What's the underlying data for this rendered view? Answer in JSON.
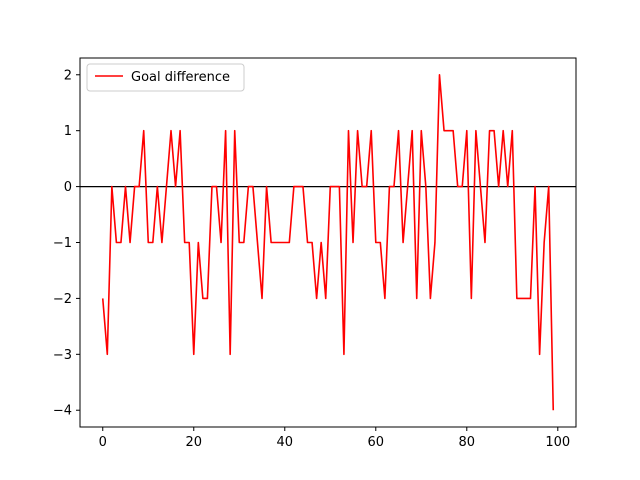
{
  "chart_data": {
    "type": "line",
    "title": "",
    "xlabel": "",
    "ylabel": "",
    "xlim": [
      -5,
      104
    ],
    "ylim": [
      -4.3,
      2.3
    ],
    "xticks": [
      0,
      20,
      40,
      60,
      80,
      100
    ],
    "yticks": [
      -4,
      -3,
      -2,
      -1,
      0,
      1,
      2
    ],
    "xtick_labels": [
      "0",
      "20",
      "40",
      "60",
      "80",
      "100"
    ],
    "ytick_labels": [
      "−4",
      "−3",
      "−2",
      "−1",
      "0",
      "1",
      "2"
    ],
    "grid": false,
    "legend_position": "top-left",
    "reference_line": {
      "y": 0,
      "color": "#000000"
    },
    "series": [
      {
        "name": "Goal difference",
        "color": "#ff0000",
        "x": [
          0,
          1,
          2,
          3,
          4,
          5,
          6,
          7,
          8,
          9,
          10,
          11,
          12,
          13,
          14,
          15,
          16,
          17,
          18,
          19,
          20,
          21,
          22,
          23,
          24,
          25,
          26,
          27,
          28,
          29,
          30,
          31,
          32,
          33,
          34,
          35,
          36,
          37,
          38,
          39,
          40,
          41,
          42,
          43,
          44,
          45,
          46,
          47,
          48,
          49,
          50,
          51,
          52,
          53,
          54,
          55,
          56,
          57,
          58,
          59,
          60,
          61,
          62,
          63,
          64,
          65,
          66,
          67,
          68,
          69,
          70,
          71,
          72,
          73,
          74,
          75,
          76,
          77,
          78,
          79,
          80,
          81,
          82,
          83,
          84,
          85,
          86,
          87,
          88,
          89,
          90,
          91,
          92,
          93,
          94,
          95,
          96,
          97,
          98,
          99
        ],
        "values": [
          -2,
          -3,
          0,
          -1,
          -1,
          0,
          -1,
          0,
          0,
          1,
          -1,
          -1,
          0,
          -1,
          0,
          1,
          0,
          1,
          -1,
          -1,
          -3,
          -1,
          -2,
          -2,
          0,
          0,
          -1,
          1,
          -3,
          1,
          -1,
          -1,
          0,
          0,
          -1,
          -2,
          0,
          -1,
          -1,
          -1,
          -1,
          -1,
          0,
          0,
          0,
          -1,
          -1,
          -2,
          -1,
          -2,
          0,
          0,
          0,
          -3,
          1,
          -1,
          1,
          0,
          0,
          1,
          -1,
          -1,
          -2,
          0,
          0,
          1,
          -1,
          0,
          1,
          -2,
          1,
          0,
          -2,
          -1,
          2,
          1,
          1,
          1,
          0,
          0,
          1,
          -2,
          1,
          0,
          -1,
          1,
          1,
          0,
          1,
          0,
          1,
          -2,
          -2,
          -2,
          -2,
          0,
          -3,
          -1,
          0,
          -4
        ]
      }
    ]
  }
}
